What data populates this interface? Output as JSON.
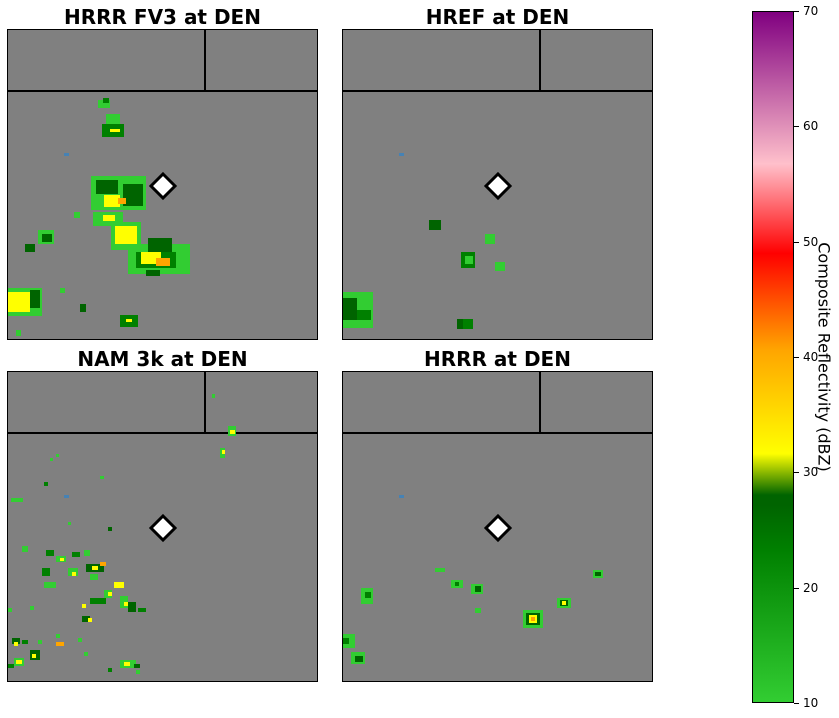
{
  "panels": [
    {
      "title": "HRRR FV3 at DEN"
    },
    {
      "title": "HREF at DEN"
    },
    {
      "title": "NAM 3k at DEN"
    },
    {
      "title": "HRRR at DEN"
    }
  ],
  "colorbar": {
    "label": "Composite Reflectivity (dBZ)",
    "ticks": [
      "10",
      "20",
      "30",
      "40",
      "50",
      "60",
      "70"
    ],
    "min": 10,
    "max": 70
  },
  "station_marker": {
    "icon": "diamond-marker-icon"
  },
  "colors": {
    "background": "#808080",
    "light_green": "#32cd32",
    "green": "#008000",
    "dark_green": "#006400",
    "yellow": "#ffff00",
    "orange": "#ffa500",
    "water": "#4682b4"
  }
}
